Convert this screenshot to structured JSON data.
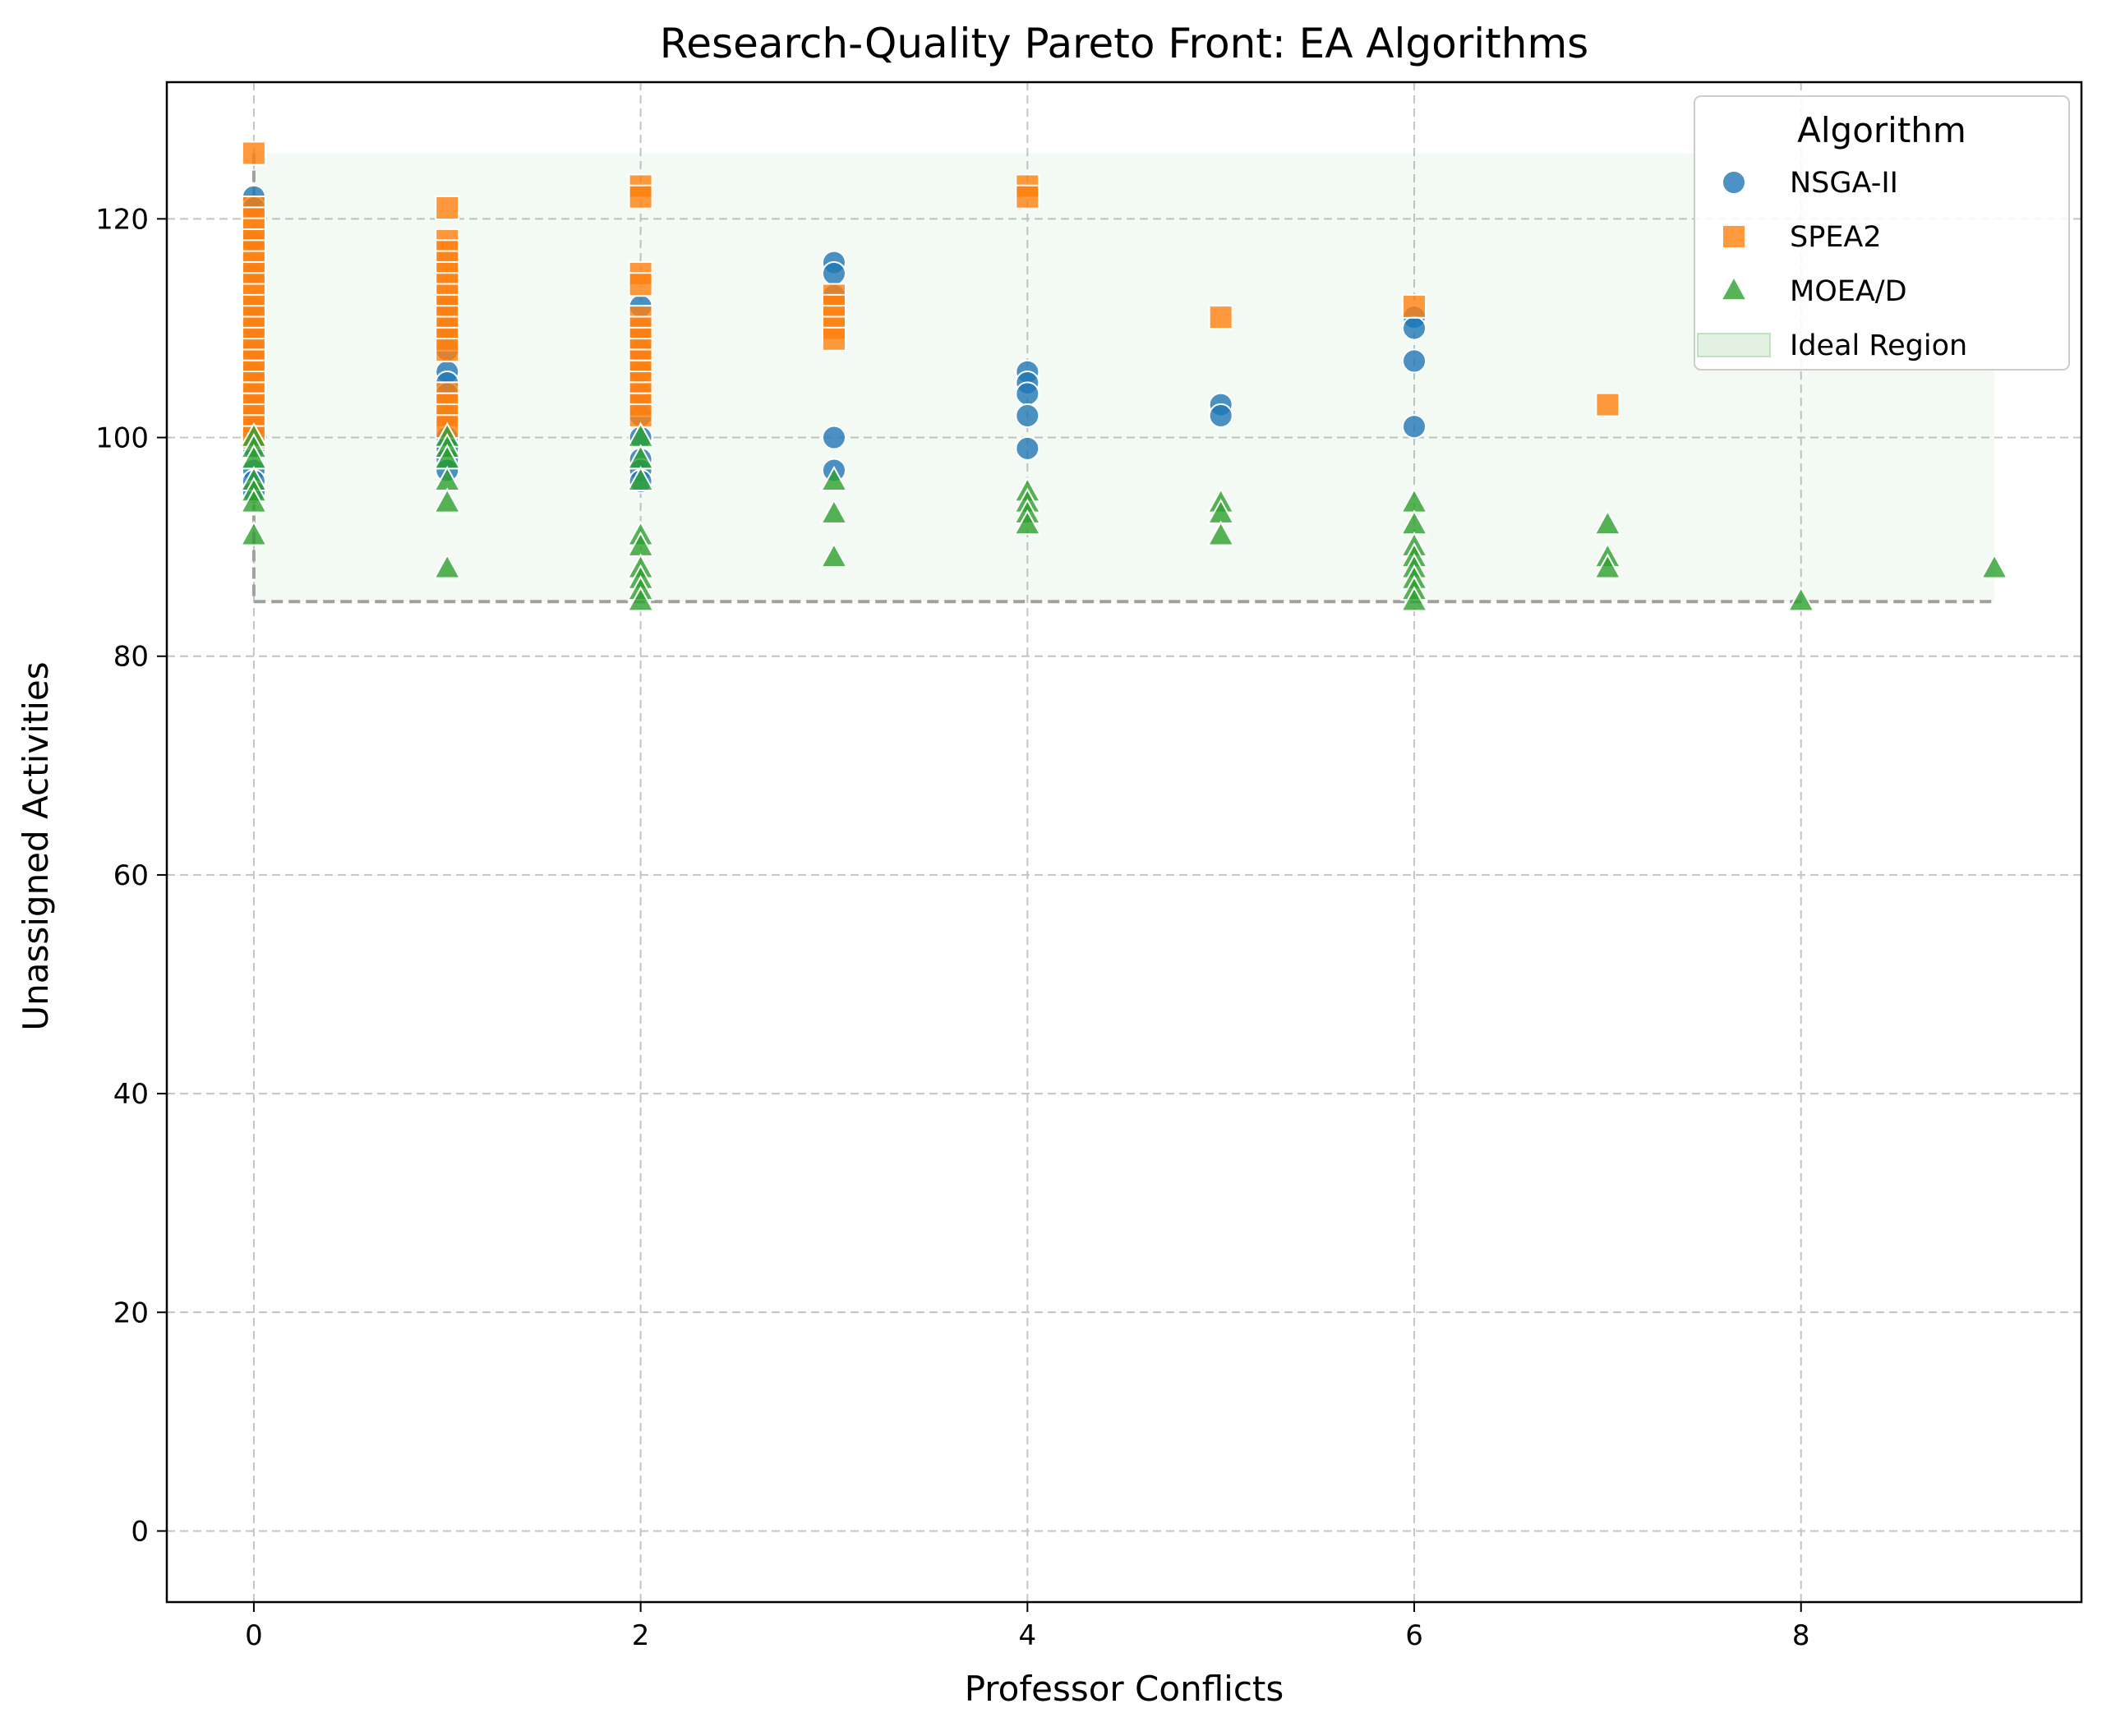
{
  "chart_data": {
    "type": "scatter",
    "title": "Research-Quality Pareto Front: EA Algorithms",
    "xlabel": "Professor Conflicts",
    "ylabel": "Unassigned Activities",
    "xlim": [
      -0.45,
      9.45
    ],
    "ylim": [
      -6.5,
      132.5
    ],
    "xticks": [
      0,
      2,
      4,
      6,
      8
    ],
    "yticks": [
      0,
      20,
      40,
      60,
      80,
      100,
      120
    ],
    "grid": true,
    "legend": {
      "title": "Algorithm",
      "position": "top-right"
    },
    "series": [
      {
        "name": "NSGA-II",
        "marker": "circle",
        "color": "#1f77b4",
        "points": [
          [
            0,
            122
          ],
          [
            0,
            121
          ],
          [
            0,
            118
          ],
          [
            0,
            115
          ],
          [
            0,
            112
          ],
          [
            0,
            110
          ],
          [
            0,
            108
          ],
          [
            0,
            106
          ],
          [
            0,
            104
          ],
          [
            0,
            102
          ],
          [
            0,
            101
          ],
          [
            0,
            99
          ],
          [
            0,
            97
          ],
          [
            0,
            96
          ],
          [
            0,
            95
          ],
          [
            1,
            112
          ],
          [
            1,
            110
          ],
          [
            1,
            108
          ],
          [
            1,
            106
          ],
          [
            1,
            105
          ],
          [
            1,
            104
          ],
          [
            1,
            102
          ],
          [
            1,
            100
          ],
          [
            1,
            99
          ],
          [
            1,
            98
          ],
          [
            1,
            97
          ],
          [
            2,
            112
          ],
          [
            2,
            110
          ],
          [
            2,
            108
          ],
          [
            2,
            106
          ],
          [
            2,
            104
          ],
          [
            2,
            102
          ],
          [
            2,
            100
          ],
          [
            2,
            98
          ],
          [
            2,
            97
          ],
          [
            2,
            96
          ],
          [
            3,
            116
          ],
          [
            3,
            115
          ],
          [
            3,
            113
          ],
          [
            3,
            100
          ],
          [
            3,
            97
          ],
          [
            4,
            106
          ],
          [
            4,
            105
          ],
          [
            4,
            104
          ],
          [
            4,
            102
          ],
          [
            4,
            99
          ],
          [
            5,
            103
          ],
          [
            5,
            102
          ],
          [
            6,
            111
          ],
          [
            6,
            110
          ],
          [
            6,
            107
          ],
          [
            6,
            101
          ]
        ]
      },
      {
        "name": "SPEA2",
        "marker": "square",
        "color": "#ff7f0e",
        "points": [
          [
            0,
            126
          ],
          [
            0,
            121
          ],
          [
            0,
            120
          ],
          [
            0,
            119
          ],
          [
            0,
            118
          ],
          [
            0,
            117
          ],
          [
            0,
            116
          ],
          [
            0,
            115
          ],
          [
            0,
            114
          ],
          [
            0,
            113
          ],
          [
            0,
            112
          ],
          [
            0,
            111
          ],
          [
            0,
            110
          ],
          [
            0,
            109
          ],
          [
            0,
            108
          ],
          [
            0,
            107
          ],
          [
            0,
            106
          ],
          [
            0,
            105
          ],
          [
            0,
            104
          ],
          [
            0,
            103
          ],
          [
            0,
            102
          ],
          [
            0,
            101
          ],
          [
            0,
            100
          ],
          [
            1,
            121
          ],
          [
            1,
            118
          ],
          [
            1,
            117
          ],
          [
            1,
            116
          ],
          [
            1,
            115
          ],
          [
            1,
            114
          ],
          [
            1,
            113
          ],
          [
            1,
            112
          ],
          [
            1,
            111
          ],
          [
            1,
            110
          ],
          [
            1,
            109
          ],
          [
            1,
            108
          ],
          [
            1,
            104
          ],
          [
            1,
            103
          ],
          [
            1,
            102
          ],
          [
            1,
            101
          ],
          [
            2,
            123
          ],
          [
            2,
            122
          ],
          [
            2,
            115
          ],
          [
            2,
            114
          ],
          [
            2,
            111
          ],
          [
            2,
            110
          ],
          [
            2,
            109
          ],
          [
            2,
            108
          ],
          [
            2,
            107
          ],
          [
            2,
            106
          ],
          [
            2,
            105
          ],
          [
            2,
            104
          ],
          [
            2,
            103
          ],
          [
            2,
            102
          ],
          [
            3,
            113
          ],
          [
            3,
            112
          ],
          [
            3,
            111
          ],
          [
            3,
            110
          ],
          [
            3,
            109
          ],
          [
            4,
            123
          ],
          [
            4,
            122
          ],
          [
            5,
            111
          ],
          [
            6,
            112
          ],
          [
            7,
            103
          ]
        ]
      },
      {
        "name": "MOEA/D",
        "marker": "triangle",
        "color": "#2ca02c",
        "points": [
          [
            0,
            100
          ],
          [
            0,
            99
          ],
          [
            0,
            98
          ],
          [
            0,
            96
          ],
          [
            0,
            95
          ],
          [
            0,
            94
          ],
          [
            0,
            91
          ],
          [
            1,
            100
          ],
          [
            1,
            99
          ],
          [
            1,
            98
          ],
          [
            1,
            96
          ],
          [
            1,
            94
          ],
          [
            1,
            88
          ],
          [
            2,
            100
          ],
          [
            2,
            98
          ],
          [
            2,
            96
          ],
          [
            2,
            91
          ],
          [
            2,
            90
          ],
          [
            2,
            88
          ],
          [
            2,
            87
          ],
          [
            2,
            86
          ],
          [
            2,
            85
          ],
          [
            3,
            96
          ],
          [
            3,
            93
          ],
          [
            3,
            89
          ],
          [
            4,
            95
          ],
          [
            4,
            94
          ],
          [
            4,
            93
          ],
          [
            4,
            92
          ],
          [
            5,
            94
          ],
          [
            5,
            93
          ],
          [
            5,
            91
          ],
          [
            6,
            94
          ],
          [
            6,
            92
          ],
          [
            6,
            90
          ],
          [
            6,
            89
          ],
          [
            6,
            88
          ],
          [
            6,
            87
          ],
          [
            6,
            86
          ],
          [
            6,
            85
          ],
          [
            7,
            92
          ],
          [
            7,
            89
          ],
          [
            7,
            88
          ],
          [
            8,
            85
          ],
          [
            9,
            88
          ]
        ]
      }
    ],
    "ideal_region": {
      "name": "Ideal Region",
      "color": "#2ca02c",
      "x_from": 0,
      "x_to": 9,
      "y_from": 85,
      "y_to": 126
    },
    "pareto_boundary": {
      "color": "#a0a0a0",
      "points": [
        [
          0,
          126
        ],
        [
          0,
          85
        ],
        [
          9,
          85
        ]
      ]
    }
  }
}
